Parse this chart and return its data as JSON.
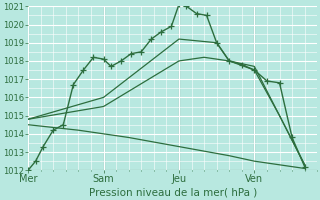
{
  "bg_color": "#b8e8e0",
  "grid_color": "#c8ddd8",
  "line_color": "#2d6e3e",
  "ylim": [
    1012,
    1021
  ],
  "yticks": [
    1012,
    1013,
    1014,
    1015,
    1016,
    1017,
    1018,
    1019,
    1020,
    1021
  ],
  "xtick_labels": [
    "Mer",
    "Sam",
    "Jeu",
    "Ven"
  ],
  "xtick_positions": [
    0,
    3,
    6,
    9
  ],
  "x_max": 11.5,
  "xlabel": "Pression niveau de la mer( hPa )",
  "line1_x": [
    0.0,
    0.3,
    0.6,
    1.0,
    1.4,
    1.8,
    2.2,
    2.6,
    3.0,
    3.3,
    3.7,
    4.1,
    4.5,
    4.9,
    5.3,
    5.7,
    6.0,
    6.3,
    6.7,
    7.1,
    7.5,
    8.0,
    8.5,
    9.0,
    9.5,
    10.0,
    10.5,
    11.0
  ],
  "line1_y": [
    1012.0,
    1012.5,
    1013.3,
    1014.2,
    1014.5,
    1016.7,
    1017.5,
    1018.2,
    1018.1,
    1017.7,
    1018.0,
    1018.4,
    1018.5,
    1019.2,
    1019.6,
    1019.9,
    1021.1,
    1021.0,
    1020.6,
    1020.5,
    1019.0,
    1018.0,
    1017.8,
    1017.5,
    1016.9,
    1016.8,
    1013.8,
    1012.2
  ],
  "line2_x": [
    0.0,
    3.0,
    6.0,
    7.5,
    8.0,
    9.0,
    10.0,
    11.0
  ],
  "line2_y": [
    1014.8,
    1016.0,
    1019.2,
    1019.0,
    1018.0,
    1017.5,
    1015.0,
    1012.3
  ],
  "line3_x": [
    0.0,
    3.0,
    6.0,
    7.0,
    8.0,
    9.0,
    10.0,
    11.0
  ],
  "line3_y": [
    1014.8,
    1015.5,
    1018.0,
    1018.2,
    1018.0,
    1017.7,
    1015.0,
    1012.3
  ],
  "line4_x": [
    0.0,
    2.0,
    4.0,
    6.0,
    8.0,
    9.0,
    10.0,
    11.0
  ],
  "line4_y": [
    1014.5,
    1014.2,
    1013.8,
    1013.3,
    1012.8,
    1012.5,
    1012.3,
    1012.1
  ]
}
